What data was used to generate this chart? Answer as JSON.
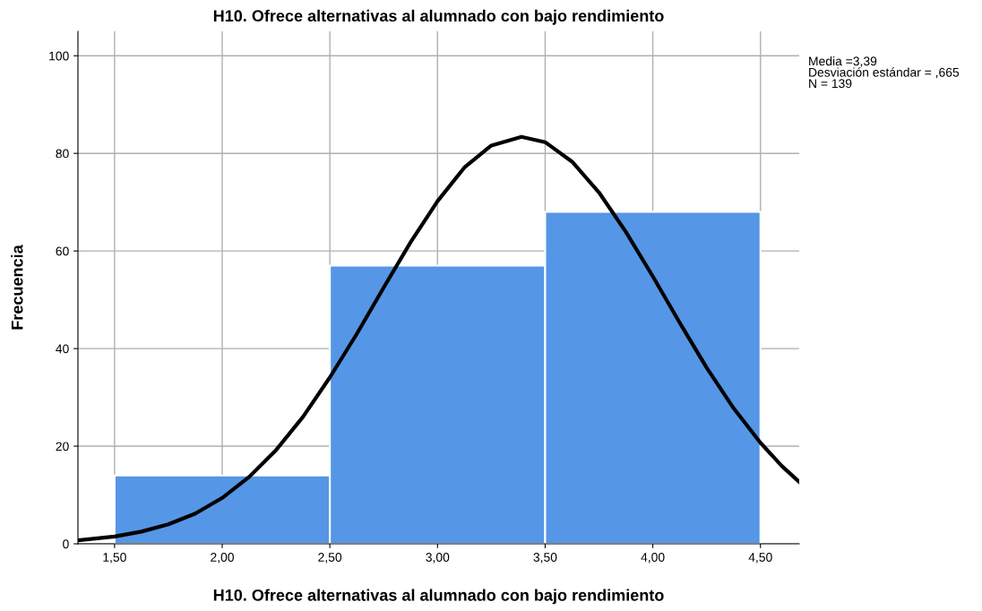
{
  "chart_data": {
    "type": "histogram",
    "title": "H10. Ofrece alternativas al alumnado con bajo rendimiento",
    "xlabel": "H10. Ofrece alternativas al alumnado con bajo rendimiento",
    "ylabel": "Frecuencia",
    "bins": [
      1.5,
      2.5,
      3.5,
      4.5
    ],
    "values": [
      14,
      57,
      68
    ],
    "color": "#5596e6",
    "series": [
      {
        "type": "line",
        "color": "#000000",
        "x": [
          1.33,
          1.5,
          1.625,
          1.75,
          1.875,
          2.0,
          2.125,
          2.25,
          2.375,
          2.5,
          2.625,
          2.75,
          2.875,
          3.0,
          3.125,
          3.25,
          3.39,
          3.5,
          3.625,
          3.75,
          3.875,
          4.0,
          4.125,
          4.25,
          4.375,
          4.5,
          4.6,
          4.68
        ],
        "values": [
          0.7,
          1.5,
          2.5,
          4.0,
          6.2,
          9.4,
          13.7,
          19.2,
          26.0,
          34.1,
          43.0,
          52.5,
          61.8,
          70.2,
          77.1,
          81.6,
          83.4,
          82.3,
          78.3,
          72.0,
          63.9,
          54.8,
          45.3,
          36.1,
          27.8,
          20.7,
          15.9,
          12.7
        ]
      }
    ],
    "annotations": [
      "Media =3,39\nDesviación estándar = ,665\nN = 139"
    ],
    "xlim": [
      1.33,
      4.68
    ],
    "ylim": [
      0,
      105
    ],
    "xticks": [
      {
        "value": 1.5,
        "label": "1,50"
      },
      {
        "value": 2.0,
        "label": "2,00"
      },
      {
        "value": 2.5,
        "label": "2,50"
      },
      {
        "value": 3.0,
        "label": "3,00"
      },
      {
        "value": 3.5,
        "label": "3,50"
      },
      {
        "value": 4.0,
        "label": "4,00"
      },
      {
        "value": 4.5,
        "label": "4,50"
      }
    ],
    "yticks": [
      0,
      20,
      40,
      60,
      80,
      100
    ],
    "grid": true
  }
}
